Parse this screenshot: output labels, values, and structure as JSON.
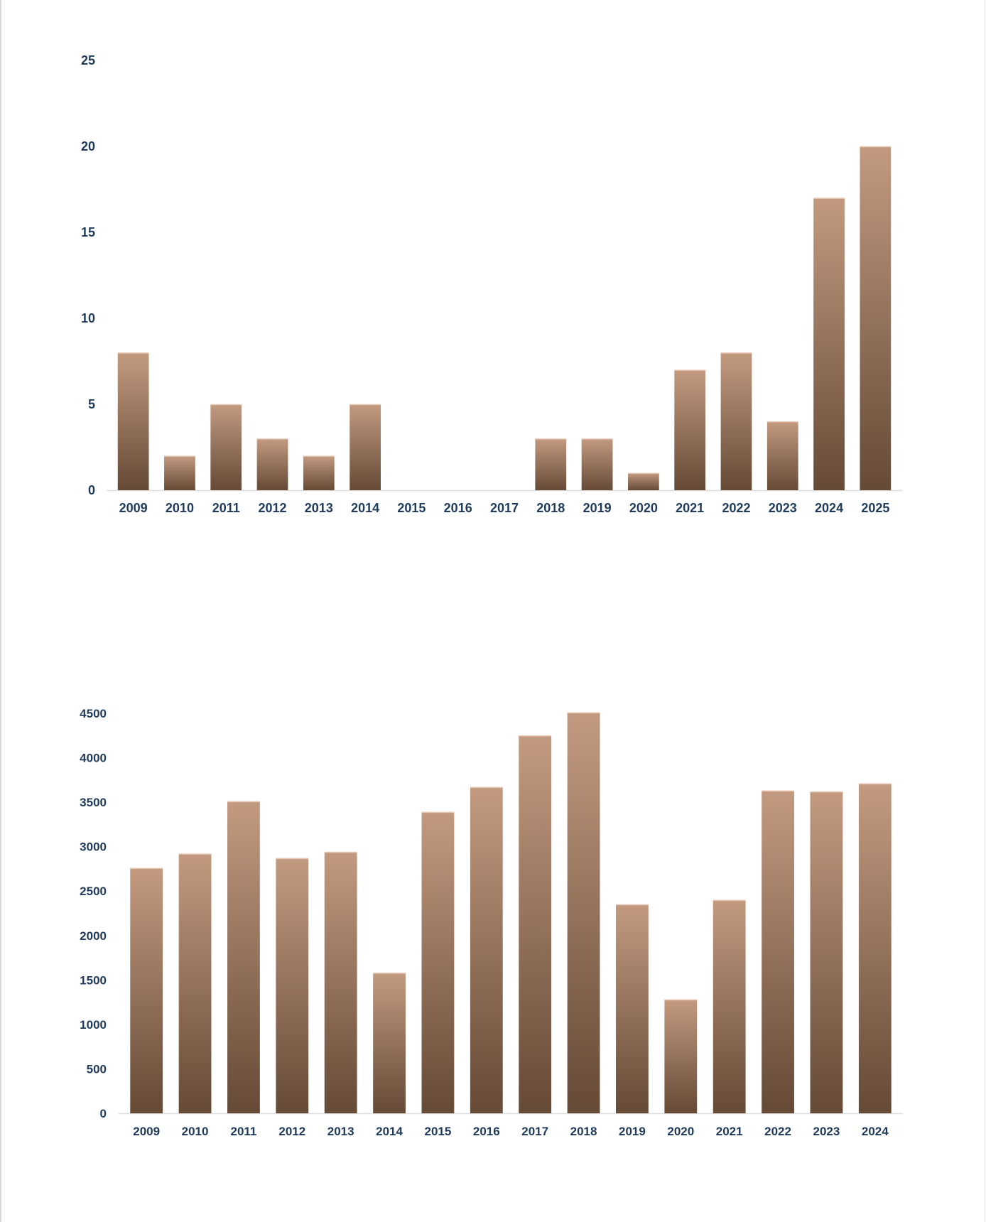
{
  "colors": {
    "bar_top": "#c39a80",
    "bar_bottom": "#654a36",
    "tick_text": "#1f3a5a",
    "axis_line": "#dcdcdc"
  },
  "chart_data": [
    {
      "type": "bar",
      "categories": [
        "2009",
        "2010",
        "2011",
        "2012",
        "2013",
        "2014",
        "2015",
        "2016",
        "2017",
        "2018",
        "2019",
        "2020",
        "2021",
        "2022",
        "2023",
        "2024",
        "2025"
      ],
      "values": [
        8,
        2,
        5,
        3,
        2,
        5,
        0,
        0,
        0,
        3,
        3,
        1,
        7,
        8,
        4,
        17,
        20
      ],
      "ylim": [
        0,
        25
      ],
      "yticks": [
        0,
        5,
        10,
        15,
        20,
        25
      ],
      "grid": false,
      "title": "",
      "xlabel": "",
      "ylabel": ""
    },
    {
      "type": "bar",
      "categories": [
        "2009",
        "2010",
        "2011",
        "2012",
        "2013",
        "2014",
        "2015",
        "2016",
        "2017",
        "2018",
        "2019",
        "2020",
        "2021",
        "2022",
        "2023",
        "2024"
      ],
      "values": [
        2760,
        2920,
        3510,
        2870,
        2940,
        1580,
        3390,
        3670,
        4250,
        4510,
        2350,
        1280,
        2400,
        3630,
        3620,
        3710
      ],
      "ylim": [
        0,
        4500
      ],
      "yticks": [
        0,
        500,
        1000,
        1500,
        2000,
        2500,
        3000,
        3500,
        4000,
        4500
      ],
      "grid": false,
      "title": "",
      "xlabel": "",
      "ylabel": ""
    }
  ]
}
